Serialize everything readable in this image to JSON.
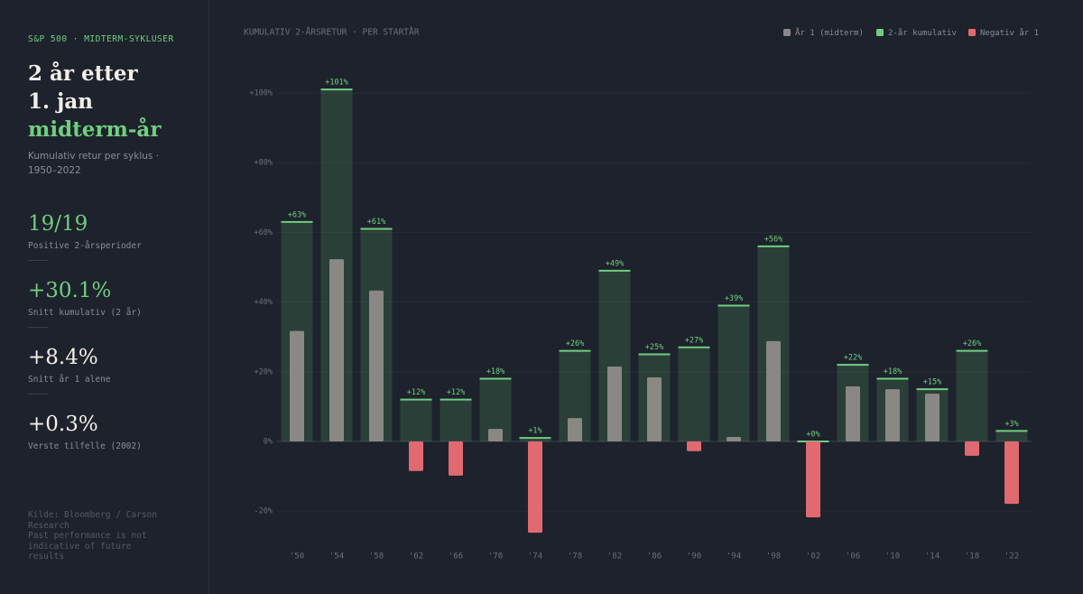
{
  "sidebar": {
    "eyebrow": "S&P 500 · MIDTERM-SYKLUSER",
    "heading": [
      "2 år etter",
      "1. jan"
    ],
    "heading_accent": "midterm-år",
    "subtitle": "Kumulativ retur per syklus · 1950–2022",
    "stats": [
      {
        "value": "19/19",
        "label": "Positive 2-årsperioder"
      },
      {
        "value": "+30.1%",
        "label": "Snitt kumulativ (2 år)"
      },
      {
        "value": "+8.4%",
        "label": "Snitt år 1 alene"
      },
      {
        "value": "+0.3%",
        "label": "Verste tilfelle (2002)"
      }
    ],
    "source": [
      "Kilde: Bloomberg / Carson Research",
      "Past performance is not indicative of future results"
    ]
  },
  "chart_data": {
    "type": "bar",
    "title": "KUMULATIV 2-ÅRSRETUR · PER STARTÅR",
    "categories": [
      "'50",
      "'54",
      "'58",
      "'62",
      "'66",
      "'70",
      "'74",
      "'78",
      "'82",
      "'86",
      "'90",
      "'94",
      "'98",
      "'02",
      "'06",
      "'10",
      "'14",
      "'18",
      "'22"
    ],
    "series": [
      {
        "name": "År 1 (midterm)",
        "color": "#8a8884",
        "values": [
          31.7,
          52.3,
          43.3,
          -8.5,
          -9.8,
          3.6,
          -26.2,
          6.7,
          21.5,
          18.4,
          -2.8,
          1.3,
          28.8,
          -21.8,
          15.8,
          15,
          13.7,
          -4.1,
          -17.9
        ]
      },
      {
        "name": "2-år kumulativ",
        "color": "#6fcf7f",
        "values": [
          63,
          101,
          61,
          12,
          12,
          18,
          1,
          26,
          49,
          25,
          27,
          39,
          56,
          0,
          22,
          18,
          15,
          26,
          3
        ],
        "value_labels": [
          "+63%",
          "+101%",
          "+61%",
          "+12%",
          "+12%",
          "+18%",
          "+1%",
          "+26%",
          "+49%",
          "+25%",
          "+27%",
          "+39%",
          "+56%",
          "+0%",
          "+22%",
          "+18%",
          "+15%",
          "+26%",
          "+3%"
        ]
      }
    ],
    "negative_label": "Negativ år 1",
    "negative_color": "#e06a70",
    "ylim": [
      -30,
      110
    ],
    "yticks": [
      {
        "value": -20,
        "label": "-20%"
      },
      {
        "value": 0,
        "label": "0%"
      },
      {
        "value": 20,
        "label": "+20%"
      },
      {
        "value": 40,
        "label": "+40%"
      },
      {
        "value": 60,
        "label": "+60%"
      },
      {
        "value": 80,
        "label": "+80%"
      },
      {
        "value": 100,
        "label": "+100%"
      }
    ],
    "grid": true
  }
}
